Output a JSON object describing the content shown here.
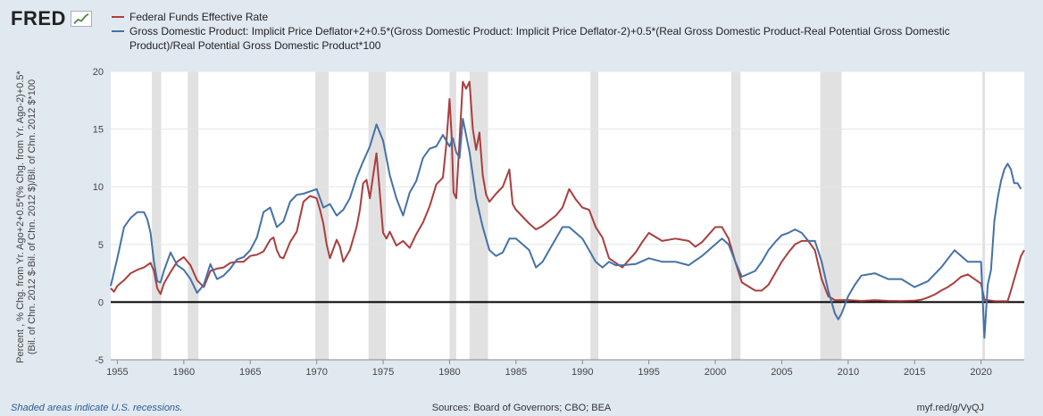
{
  "brand": {
    "logo_text": "FRED",
    "logo_icon": "fred-chart-icon"
  },
  "legend": [
    {
      "label": "Federal Funds Effective Rate",
      "color": "#aa3e3e"
    },
    {
      "label": "Gross Domestic Product: Implicit Price Deflator+2+0.5*(Gross Domestic Product: Implicit Price Deflator-2)+0.5*(Real Gross Domestic Product-Real Potential Gross Domestic Product)/Real Potential Gross Domestic Product*100",
      "color": "#4572a7"
    }
  ],
  "y_axis_label": "Percent , % Chg. from Yr. Ago+2+0.5*(% Chg. from Yr. Ago-2)+0.5*(Bil. of Chn. 2012 $-Bil. of Chn. 2012 $)/Bil. of Chn. 2012 $*100",
  "footer": {
    "note": "Shaded areas indicate U.S. recessions.",
    "sources": "Sources: Board of Governors; CBO; BEA",
    "link": "myf.red/g/VyQJ"
  },
  "chart_data": {
    "type": "line",
    "xlim": [
      1954.5,
      2023.25
    ],
    "ylim": [
      -5,
      20
    ],
    "y_ticks": [
      -5,
      0,
      5,
      10,
      15,
      20
    ],
    "x_ticks": [
      1955,
      1960,
      1965,
      1970,
      1975,
      1980,
      1985,
      1990,
      1995,
      2000,
      2005,
      2010,
      2015,
      2020
    ],
    "zero_line": true,
    "recessions": [
      [
        1957.6,
        1958.3
      ],
      [
        1960.3,
        1961.1
      ],
      [
        1969.9,
        1970.9
      ],
      [
        1973.9,
        1975.2
      ],
      [
        1980.0,
        1980.5
      ],
      [
        1981.5,
        1982.9
      ],
      [
        1990.6,
        1991.2
      ],
      [
        2001.2,
        2001.9
      ],
      [
        2007.9,
        2009.5
      ],
      [
        2020.1,
        2020.3
      ]
    ],
    "series": [
      {
        "name": "Federal Funds Effective Rate",
        "color": "#aa3e3e",
        "x": [
          1954.5,
          1954.75,
          1955,
          1955.5,
          1956,
          1956.5,
          1957,
          1957.5,
          1957.75,
          1958,
          1958.25,
          1958.5,
          1959,
          1959.5,
          1960,
          1960.5,
          1961,
          1961.5,
          1962,
          1962.5,
          1963,
          1963.5,
          1964,
          1964.5,
          1965,
          1965.5,
          1966,
          1966.5,
          1966.75,
          1967,
          1967.25,
          1967.5,
          1968,
          1968.5,
          1969,
          1969.5,
          1970,
          1970.25,
          1970.5,
          1970.75,
          1971,
          1971.25,
          1971.5,
          1971.75,
          1972,
          1972.5,
          1973,
          1973.25,
          1973.5,
          1973.75,
          1974,
          1974.25,
          1974.5,
          1974.75,
          1975,
          1975.25,
          1975.5,
          1976,
          1976.5,
          1977,
          1977.5,
          1978,
          1978.5,
          1979,
          1979.5,
          1979.75,
          1980,
          1980.15,
          1980.3,
          1980.5,
          1980.75,
          1981,
          1981.25,
          1981.5,
          1981.75,
          1982,
          1982.25,
          1982.5,
          1982.75,
          1983,
          1983.5,
          1984,
          1984.5,
          1984.75,
          1985,
          1986,
          1986.5,
          1987,
          1988,
          1988.5,
          1989,
          1989.5,
          1990,
          1990.5,
          1991,
          1991.5,
          1992,
          1993,
          1994,
          1994.5,
          1995,
          1996,
          1997,
          1998,
          1998.5,
          1999,
          2000,
          2000.5,
          2001,
          2001.5,
          2002,
          2003,
          2003.5,
          2004,
          2004.5,
          2005,
          2005.5,
          2006,
          2006.5,
          2007,
          2007.5,
          2008,
          2008.5,
          2009,
          2010,
          2011,
          2012,
          2013,
          2014,
          2015,
          2015.5,
          2016,
          2016.5,
          2017,
          2017.5,
          2018,
          2018.5,
          2019,
          2019.5,
          2020,
          2020.25,
          2021,
          2022,
          2022.25,
          2022.5,
          2022.75,
          2023,
          2023.25
        ],
        "y": [
          1.2,
          0.9,
          1.4,
          1.9,
          2.5,
          2.8,
          3.0,
          3.4,
          2.7,
          1.2,
          0.7,
          1.6,
          2.6,
          3.5,
          3.9,
          3.2,
          1.9,
          1.3,
          2.7,
          2.9,
          3.0,
          3.4,
          3.5,
          3.5,
          4.0,
          4.1,
          4.4,
          5.4,
          5.6,
          4.5,
          3.9,
          3.8,
          5.2,
          6.1,
          8.7,
          9.2,
          9.0,
          8.0,
          6.8,
          5.0,
          3.8,
          4.6,
          5.4,
          4.8,
          3.5,
          4.5,
          6.5,
          8.0,
          10.3,
          10.6,
          9.0,
          11.0,
          12.9,
          9.5,
          6.0,
          5.5,
          6.1,
          4.9,
          5.3,
          4.7,
          5.9,
          6.9,
          8.3,
          10.2,
          10.8,
          13.6,
          17.6,
          14.5,
          9.5,
          9.0,
          14.0,
          19.1,
          18.5,
          19.1,
          15.0,
          13.2,
          14.7,
          11.0,
          9.3,
          8.7,
          9.4,
          10.0,
          11.5,
          8.5,
          8.0,
          6.8,
          6.3,
          6.6,
          7.5,
          8.2,
          9.8,
          8.9,
          8.2,
          8.0,
          6.5,
          5.6,
          3.8,
          3.0,
          4.3,
          5.2,
          6.0,
          5.3,
          5.5,
          5.3,
          4.8,
          5.2,
          6.5,
          6.5,
          5.5,
          3.5,
          1.7,
          1.0,
          1.0,
          1.5,
          2.5,
          3.5,
          4.3,
          5.0,
          5.3,
          5.3,
          4.5,
          2.0,
          0.5,
          0.16,
          0.18,
          0.1,
          0.16,
          0.11,
          0.09,
          0.13,
          0.2,
          0.4,
          0.65,
          1.0,
          1.3,
          1.7,
          2.2,
          2.4,
          2.0,
          1.6,
          0.2,
          0.09,
          0.08,
          1.0,
          2.0,
          3.0,
          4.0,
          4.5
        ]
      },
      {
        "name": "Gross Domestic Product: Implicit Price Deflator+2+0.5*(Gross Domestic Product: Implicit Price Deflator-2)+0.5*(Real Gross Domestic Product-Real Potential Gross Domestic Product)/Real Potential Gross Domestic Product*100",
        "color": "#4572a7",
        "x": [
          1954.5,
          1955,
          1955.5,
          1956,
          1956.5,
          1957,
          1957.25,
          1957.5,
          1957.75,
          1958,
          1958.25,
          1958.5,
          1959,
          1959.5,
          1960,
          1960.5,
          1961,
          1961.5,
          1962,
          1962.5,
          1963,
          1963.5,
          1964,
          1964.5,
          1965,
          1965.5,
          1966,
          1966.5,
          1967,
          1967.5,
          1968,
          1968.5,
          1969,
          1969.5,
          1970,
          1970.5,
          1971,
          1971.5,
          1972,
          1972.5,
          1973,
          1973.5,
          1974,
          1974.5,
          1975,
          1975.5,
          1976,
          1976.5,
          1977,
          1977.5,
          1978,
          1978.5,
          1979,
          1979.5,
          1980,
          1980.25,
          1980.5,
          1980.75,
          1981,
          1981.5,
          1982,
          1982.5,
          1983,
          1983.5,
          1984,
          1984.5,
          1985,
          1985.5,
          1986,
          1986.5,
          1987,
          1987.5,
          1988,
          1988.5,
          1989,
          1989.5,
          1990,
          1990.5,
          1991,
          1991.5,
          1992,
          1992.5,
          1993,
          1994,
          1995,
          1996,
          1997,
          1998,
          1999,
          2000,
          2000.5,
          2001,
          2001.5,
          2002,
          2003,
          2003.5,
          2004,
          2004.5,
          2005,
          2005.5,
          2006,
          2006.5,
          2007,
          2007.5,
          2008,
          2008.5,
          2009,
          2009.25,
          2009.5,
          2010,
          2010.5,
          2011,
          2012,
          2013,
          2014,
          2015,
          2016,
          2017,
          2018,
          2018.5,
          2019,
          2019.5,
          2020,
          2020.25,
          2020.5,
          2020.75,
          2021,
          2021.25,
          2021.5,
          2021.75,
          2022,
          2022.25,
          2022.5,
          2022.75,
          2023
        ],
        "y": [
          1.4,
          3.8,
          6.5,
          7.3,
          7.8,
          7.8,
          7.2,
          6.0,
          3.5,
          1.8,
          1.7,
          2.7,
          4.3,
          3.2,
          2.8,
          2.0,
          0.8,
          1.5,
          3.3,
          2.0,
          2.3,
          2.9,
          3.7,
          3.9,
          4.5,
          5.6,
          7.8,
          8.2,
          6.5,
          7.0,
          8.7,
          9.3,
          9.4,
          9.6,
          9.8,
          8.2,
          8.5,
          7.5,
          8.0,
          9.0,
          10.8,
          12.2,
          13.5,
          15.4,
          14.0,
          11.0,
          9.0,
          7.5,
          9.5,
          10.5,
          12.5,
          13.3,
          13.5,
          14.5,
          13.5,
          14.2,
          13.0,
          12.5,
          15.9,
          13.0,
          9.0,
          6.5,
          4.5,
          4.0,
          4.3,
          5.5,
          5.5,
          5.0,
          4.5,
          3.0,
          3.5,
          4.5,
          5.5,
          6.5,
          6.5,
          6.0,
          5.5,
          4.5,
          3.5,
          3.0,
          3.5,
          3.2,
          3.2,
          3.3,
          3.8,
          3.5,
          3.5,
          3.2,
          4.0,
          5.0,
          5.5,
          5.0,
          3.5,
          2.2,
          2.7,
          3.5,
          4.5,
          5.2,
          5.8,
          6.0,
          6.3,
          6.0,
          5.3,
          5.3,
          3.5,
          1.0,
          -1.0,
          -1.5,
          -1.0,
          0.5,
          1.5,
          2.3,
          2.5,
          2.0,
          2.0,
          1.3,
          1.8,
          3.0,
          4.5,
          4.0,
          3.5,
          3.5,
          3.5,
          -3.1,
          1.5,
          2.8,
          7.0,
          9.0,
          10.5,
          11.5,
          12.0,
          11.5,
          10.3,
          10.3,
          9.8
        ]
      }
    ]
  }
}
